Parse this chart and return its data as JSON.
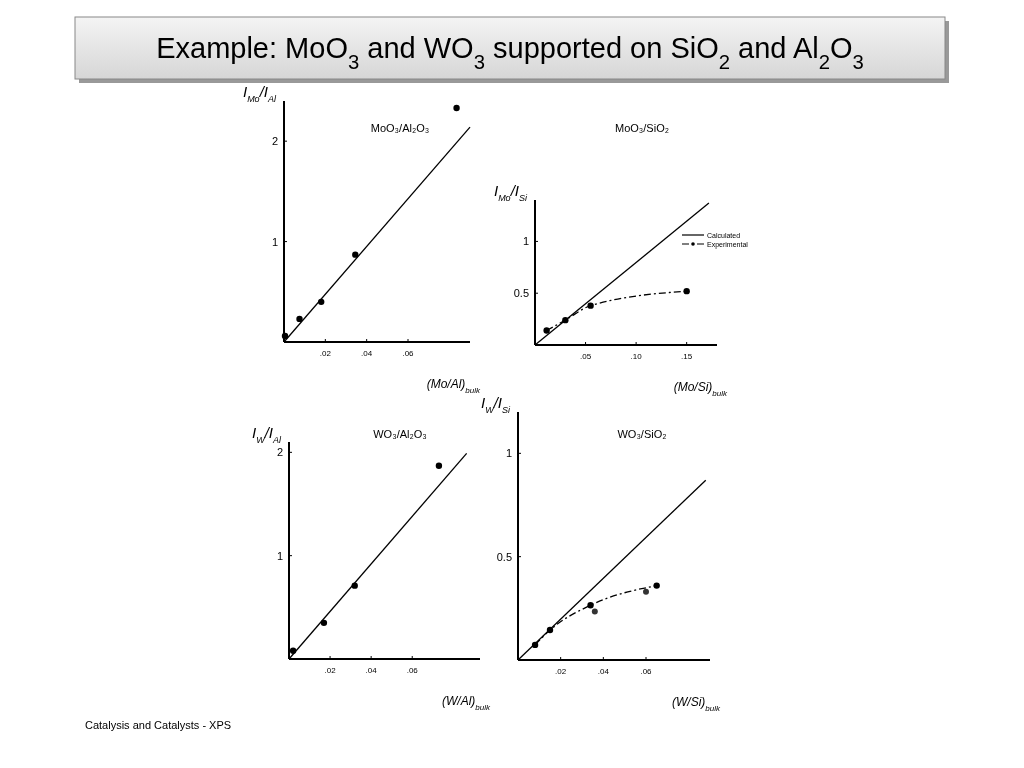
{
  "chart_data": [
    {
      "type": "scatter",
      "title": "MoO₃/Al₂O₃",
      "xlabel": "(Mo/Al)$_{bulk}$",
      "ylabel": "I$_{Mo}$/I$_{Al}$",
      "xlim": [
        0,
        0.09
      ],
      "ylim": [
        0,
        2.4
      ],
      "xticks": [
        {
          "value": 0.02,
          "label": ".02"
        },
        {
          "value": 0.04,
          "label": ".04"
        },
        {
          "value": 0.06,
          "label": ".06"
        }
      ],
      "yticks": [
        1,
        2
      ],
      "marker": "circle",
      "annotations": [
        "Example: MoO$_{3}$ and WO$_{3}$ supported on SiO$_{2}$ and Al$_{2}$O$_{3}$",
        "Catalysis and Catalysts - XPS"
      ],
      "series": [
        {
          "color": "#000000",
          "x": [
            0.0005,
            0.0075,
            0.018,
            0.0345,
            0.0835
          ],
          "values": [
            0.06,
            0.23,
            0.4,
            0.87,
            2.33
          ]
        },
        {
          "type": "line",
          "color": "#000000",
          "marker": "none",
          "line_style": "solid",
          "x": [
            0,
            0.09
          ],
          "values": [
            0,
            2.14
          ]
        }
      ]
    },
    {
      "type": "line",
      "title": "MoO₃/SiO₂",
      "xlabel": "(Mo/Si)$_{bulk}$",
      "ylabel": "I$_{Mo}$/I$_{Si}$",
      "xlim": [
        0,
        0.18
      ],
      "ylim": [
        0,
        1.4
      ],
      "xticks": [
        {
          "value": 0.05,
          "label": ".05"
        },
        {
          "value": 0.1,
          "label": ".10"
        },
        {
          "value": 0.15,
          "label": ".15"
        }
      ],
      "yticks": [
        0.5,
        1
      ],
      "legend": "right",
      "series": [
        {
          "name": "Calculated",
          "color": "#000000",
          "marker": "none",
          "line_style": "solid",
          "x": [
            0,
            0.172
          ],
          "values": [
            0,
            1.37
          ]
        },
        {
          "name": "Experimental",
          "color": "#000000",
          "marker": "circle",
          "line_style": "dashed",
          "x": [
            0.0115,
            0.03,
            0.055,
            0.15
          ],
          "values": [
            0.14,
            0.24,
            0.38,
            0.52
          ]
        }
      ]
    },
    {
      "type": "scatter",
      "title": "WO₃/Al₂O₃",
      "xlabel": "(W/Al)$_{bulk}$",
      "ylabel": "I$_{W}$/I$_{Al}$",
      "xlim": [
        0,
        0.093
      ],
      "ylim": [
        0,
        2.1
      ],
      "xticks": [
        {
          "value": 0.02,
          "label": ".02"
        },
        {
          "value": 0.04,
          "label": ".04"
        },
        {
          "value": 0.06,
          "label": ".06"
        }
      ],
      "yticks": [
        1,
        2
      ],
      "marker": "circle",
      "series": [
        {
          "color": "#000000",
          "x": [
            0.002,
            0.017,
            0.032,
            0.073
          ],
          "values": [
            0.08,
            0.35,
            0.71,
            1.87
          ]
        },
        {
          "type": "line",
          "color": "#000000",
          "marker": "none",
          "line_style": "solid",
          "x": [
            0,
            0.0865
          ],
          "values": [
            0,
            1.99
          ]
        }
      ]
    },
    {
      "type": "line",
      "title": "WO₃/SiO₂",
      "xlabel": "(W/Si)$_{bulk}$",
      "ylabel": "I$_{W}$/I$_{Si}$",
      "xlim": [
        0,
        0.09
      ],
      "ylim": [
        0,
        1.2
      ],
      "xticks": [
        {
          "value": 0.02,
          "label": ".02"
        },
        {
          "value": 0.04,
          "label": ".04"
        },
        {
          "value": 0.06,
          "label": ".06"
        }
      ],
      "yticks": [
        0.5,
        1
      ],
      "series": [
        {
          "type": "scatter",
          "color": "#333333",
          "marker": "circle",
          "x": [
            0.036,
            0.06
          ],
          "values": [
            0.235,
            0.33
          ]
        },
        {
          "color": "#000000",
          "marker": "none",
          "line_style": "solid",
          "x": [
            0,
            0.088
          ],
          "values": [
            0,
            0.87
          ]
        },
        {
          "color": "#000000",
          "marker": "circle",
          "line_style": "dashed",
          "x": [
            0.008,
            0.015,
            0.034,
            0.065
          ],
          "values": [
            0.073,
            0.145,
            0.265,
            0.36
          ]
        }
      ]
    }
  ]
}
